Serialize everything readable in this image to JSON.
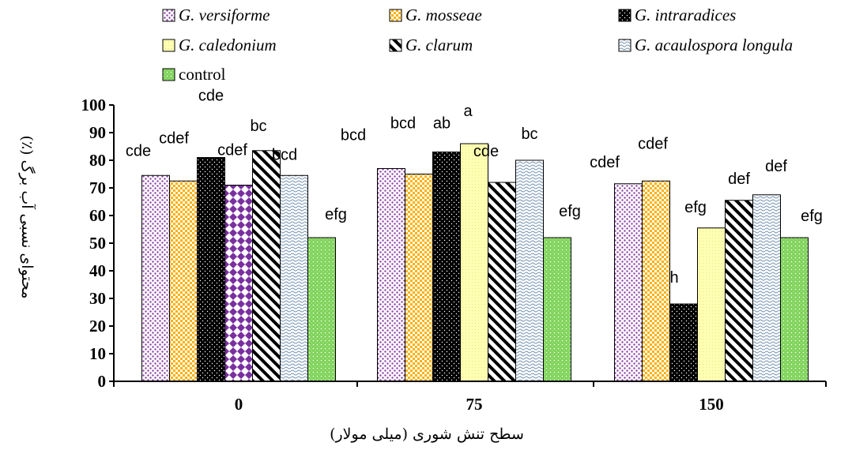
{
  "chart_data": {
    "type": "bar",
    "title": "",
    "xlabel": "سطح تنش شوری (میلی مولار)",
    "ylabel": "محتوای نسبی آب برگ (٪)",
    "ylim": [
      0,
      100
    ],
    "yticks": [
      0,
      10,
      20,
      30,
      40,
      50,
      60,
      70,
      80,
      90,
      100
    ],
    "categories": [
      "0",
      "75",
      "150"
    ],
    "grid": false,
    "legend_position": "top",
    "series": [
      {
        "name": "G. versiforme",
        "pattern": "dots",
        "color": "#8b3fa6",
        "values": [
          74.5,
          77,
          71.5
        ],
        "letters": [
          "cde",
          "bcd",
          "cdef"
        ]
      },
      {
        "name": "G. mosseae",
        "pattern": "orange-check",
        "color": "#ffb000",
        "values": [
          72.5,
          75,
          72.5
        ],
        "letters": [
          "cdef",
          "bcd",
          "cdef"
        ]
      },
      {
        "name": "G. intraradices",
        "pattern": "black-dots",
        "color": "#000000",
        "values": [
          81,
          83,
          28
        ],
        "letters": [
          "cde",
          "ab",
          "h"
        ]
      },
      {
        "name": "G. caledonium",
        "pattern": "light-yellow",
        "color": "#ffff99",
        "values": [
          71,
          86,
          55.5
        ],
        "letters": [
          "cdef",
          "a",
          "efg"
        ]
      },
      {
        "name": "G. clarum",
        "pattern": "diagonal",
        "color": "#000000",
        "values": [
          83.5,
          72,
          65.5
        ],
        "letters": [
          "bc",
          "cde",
          "def"
        ]
      },
      {
        "name": "G. acaulospora longula",
        "pattern": "wave",
        "color": "#7f9fbf",
        "values": [
          74.5,
          80,
          67.5
        ],
        "letters": [
          "bcd",
          "bc",
          "def"
        ]
      },
      {
        "name": "control",
        "pattern": "green-dots",
        "color": "#6ccc4a",
        "values": [
          52,
          52,
          52
        ],
        "letters": [
          "efg",
          "efg",
          "efg"
        ]
      }
    ]
  }
}
